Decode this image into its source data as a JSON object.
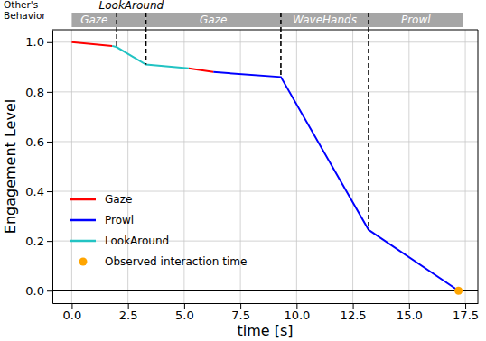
{
  "chart_data": {
    "type": "line",
    "x": [
      0,
      1.8,
      2.0,
      3.3,
      5.2,
      6.3,
      9.3,
      13.2,
      17.2
    ],
    "series": [
      {
        "name": "Gaze",
        "color": "#ff0000",
        "values": [
          1.0,
          0.985,
          null,
          null,
          0.895,
          0.88,
          null,
          null,
          null
        ]
      },
      {
        "name": "Prowl",
        "color": "#0000ff",
        "values": [
          null,
          null,
          null,
          null,
          null,
          0.88,
          0.86,
          0.245,
          0.0
        ]
      },
      {
        "name": "LookAround",
        "color": "#22c3c3",
        "values": [
          null,
          0.985,
          0.98,
          0.91,
          0.895,
          null,
          null,
          null,
          null
        ]
      },
      {
        "name": "Observed interaction time",
        "type": "scatter",
        "marker": "circle",
        "color": "#ffa500",
        "values": [
          null,
          null,
          null,
          null,
          null,
          null,
          null,
          null,
          0.0
        ]
      }
    ],
    "xlabel": "time [s]",
    "ylabel": "Engagement Level",
    "xlim": [
      -0.86,
      18.06
    ],
    "ylim": [
      -0.05,
      1.05
    ],
    "xticks": [
      {
        "value": 0,
        "label": "0.0"
      },
      {
        "value": 2.5,
        "label": "2.5"
      },
      {
        "value": 5,
        "label": "5.0"
      },
      {
        "value": 7.5,
        "label": "7.5"
      },
      {
        "value": 10,
        "label": "10.0"
      },
      {
        "value": 12.5,
        "label": "12.5"
      },
      {
        "value": 15,
        "label": "15.0"
      },
      {
        "value": 17.5,
        "label": "17.5"
      }
    ],
    "yticks": [
      {
        "value": 0,
        "label": "0.0"
      },
      {
        "value": 0.2,
        "label": "0.2"
      },
      {
        "value": 0.4,
        "label": "0.4"
      },
      {
        "value": 0.6,
        "label": "0.6"
      },
      {
        "value": 0.8,
        "label": "0.8"
      },
      {
        "value": 1,
        "label": "1.0"
      }
    ],
    "grid": true,
    "legend": "lower left",
    "hline": 0,
    "band_title": [
      "Other's",
      "Behavior"
    ],
    "behaviors": [
      {
        "label": "Gaze",
        "start": 0,
        "end": 2.0
      },
      {
        "label": "LookAround",
        "start": 2.0,
        "end": 3.3
      },
      {
        "label": "Gaze",
        "start": 3.3,
        "end": 9.3
      },
      {
        "label": "WaveHands",
        "start": 9.3,
        "end": 13.2
      },
      {
        "label": "Prowl",
        "start": 13.2,
        "end": 17.4
      }
    ]
  }
}
